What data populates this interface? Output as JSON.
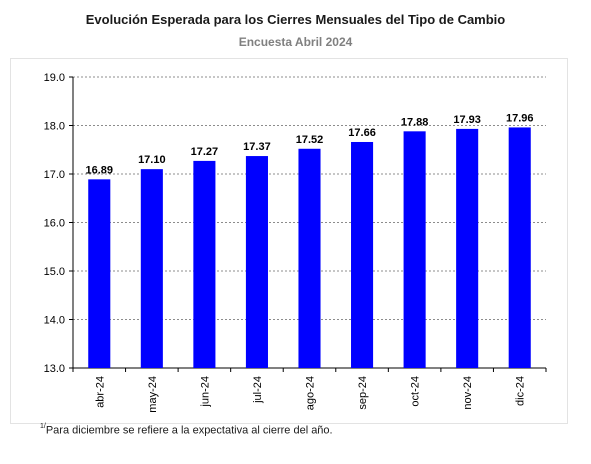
{
  "chart_data": {
    "type": "bar",
    "title": "Evolución Esperada para los Cierres Mensuales del Tipo de Cambio",
    "subtitle": "Encuesta Abril 2024",
    "categories": [
      "abr-24",
      "may-24",
      "jun-24",
      "jul-24",
      "ago-24",
      "sep-24",
      "oct-24",
      "nov-24",
      "dic-24"
    ],
    "values": [
      16.89,
      17.1,
      17.27,
      17.37,
      17.52,
      17.66,
      17.88,
      17.93,
      17.96
    ],
    "value_labels": [
      "16.89",
      "17.10",
      "17.27",
      "17.37",
      "17.52",
      "17.66",
      "17.88",
      "17.93",
      "17.96"
    ],
    "ylim": [
      13.0,
      19.0
    ],
    "yticks": [
      "13.0",
      "14.0",
      "15.0",
      "16.0",
      "17.0",
      "18.0",
      "19.0"
    ],
    "xlabel": "",
    "ylabel": "",
    "grid": true,
    "legend": "none",
    "bar_color": "#0000ff"
  },
  "footnote": {
    "marker": "1/",
    "text": "Para diciembre se refiere a la expectativa al cierre del año."
  }
}
